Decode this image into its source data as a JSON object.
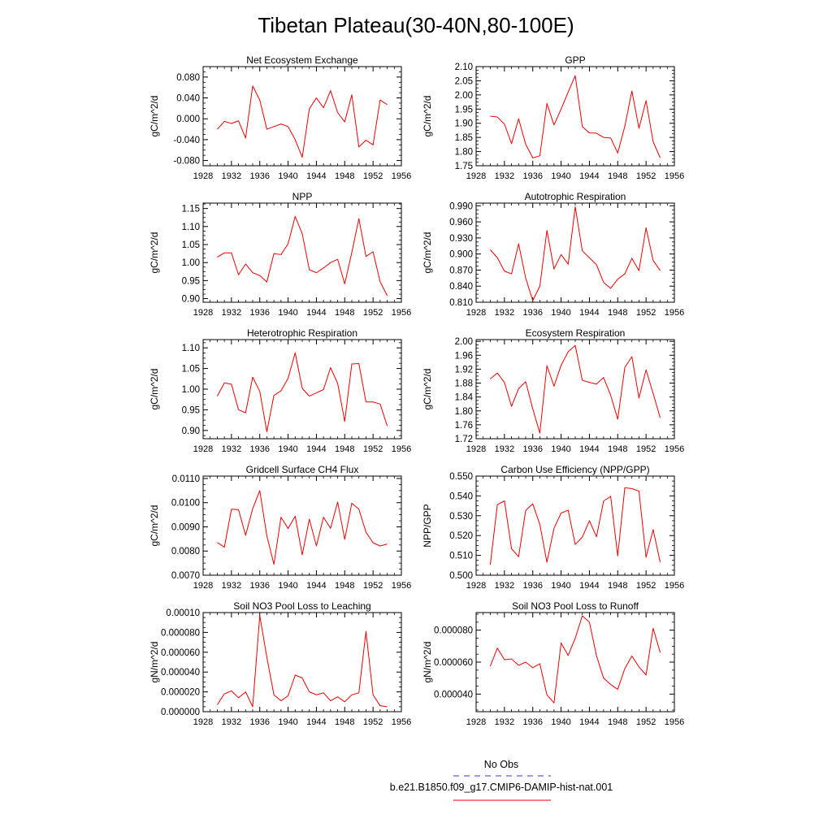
{
  "title": "Tibetan Plateau(30-40N,80-100E)",
  "legend": {
    "obs_label": "No Obs",
    "obs_color": "#3333cc",
    "model_label": "b.e21.B1850.f09_g17.CMIP6-DAMIP-hist-nat.001",
    "model_color": "#ee0000"
  },
  "chart_data": [
    {
      "type": "line",
      "title": "Net Ecosystem Exchange",
      "ylabel": "gC/m^2/d",
      "xlim": [
        1928,
        1956
      ],
      "xticks": [
        "1928",
        "1932",
        "1936",
        "1940",
        "1944",
        "1948",
        "1952",
        "1956"
      ],
      "ylim": [
        -0.09,
        0.1
      ],
      "yticks": [
        "-0.080",
        "-0.040",
        "0.000",
        "0.040",
        "0.080"
      ],
      "series": [
        {
          "x": [
            1930,
            1931,
            1932,
            1933,
            1934,
            1935,
            1936,
            1937,
            1938,
            1939,
            1940,
            1941,
            1942,
            1943,
            1944,
            1945,
            1946,
            1947,
            1948,
            1949,
            1950,
            1951,
            1952,
            1953,
            1954
          ],
          "values": [
            -0.02,
            -0.005,
            -0.009,
            -0.004,
            -0.037,
            0.063,
            0.036,
            -0.02,
            -0.015,
            -0.01,
            -0.015,
            -0.04,
            -0.074,
            0.019,
            0.04,
            0.021,
            0.054,
            0.012,
            -0.006,
            0.046,
            -0.054,
            -0.041,
            -0.05,
            0.036,
            0.027
          ]
        }
      ]
    },
    {
      "type": "line",
      "title": "GPP",
      "ylabel": "gC/m^2/d",
      "xlim": [
        1928,
        1956
      ],
      "xticks": [
        "1928",
        "1932",
        "1936",
        "1940",
        "1944",
        "1948",
        "1952",
        "1956"
      ],
      "ylim": [
        1.75,
        2.1
      ],
      "yticks": [
        "1.75",
        "1.80",
        "1.85",
        "1.90",
        "1.95",
        "2.00",
        "2.05",
        "2.10"
      ],
      "series": [
        {
          "x": [
            1930,
            1931,
            1932,
            1933,
            1934,
            1935,
            1936,
            1937,
            1938,
            1939,
            1940,
            1941,
            1942,
            1943,
            1944,
            1945,
            1946,
            1947,
            1948,
            1949,
            1950,
            1951,
            1952,
            1953,
            1954
          ],
          "values": [
            1.925,
            1.922,
            1.897,
            1.828,
            1.916,
            1.826,
            1.778,
            1.785,
            1.97,
            1.894,
            1.95,
            2.01,
            2.068,
            1.888,
            1.866,
            1.865,
            1.85,
            1.848,
            1.795,
            1.889,
            2.014,
            1.882,
            1.98,
            1.835,
            1.778
          ]
        }
      ]
    },
    {
      "type": "line",
      "title": "NPP",
      "ylabel": "gC/m^2/d",
      "xlim": [
        1928,
        1956
      ],
      "xticks": [
        "1928",
        "1932",
        "1936",
        "1940",
        "1944",
        "1948",
        "1952",
        "1956"
      ],
      "ylim": [
        0.89,
        1.165
      ],
      "yticks": [
        "0.90",
        "0.95",
        "1.00",
        "1.05",
        "1.10",
        "1.15"
      ],
      "series": [
        {
          "x": [
            1930,
            1931,
            1932,
            1933,
            1934,
            1935,
            1936,
            1937,
            1938,
            1939,
            1940,
            1941,
            1942,
            1943,
            1944,
            1945,
            1946,
            1947,
            1948,
            1949,
            1950,
            1951,
            1952,
            1953,
            1954
          ],
          "values": [
            1.015,
            1.027,
            1.027,
            0.966,
            0.996,
            0.972,
            0.964,
            0.946,
            1.025,
            1.022,
            1.052,
            1.128,
            1.08,
            0.98,
            0.972,
            0.985,
            1.0,
            1.009,
            0.941,
            1.028,
            1.122,
            1.017,
            1.03,
            0.947,
            0.908
          ]
        }
      ]
    },
    {
      "type": "line",
      "title": "Autotrophic Respiration",
      "ylabel": "gC/m^2/d",
      "xlim": [
        1928,
        1956
      ],
      "xticks": [
        "1928",
        "1932",
        "1936",
        "1940",
        "1944",
        "1948",
        "1952",
        "1956"
      ],
      "ylim": [
        0.81,
        0.995
      ],
      "yticks": [
        "0.810",
        "0.840",
        "0.870",
        "0.900",
        "0.930",
        "0.960",
        "0.990"
      ],
      "series": [
        {
          "x": [
            1930,
            1931,
            1932,
            1933,
            1934,
            1935,
            1936,
            1937,
            1938,
            1939,
            1940,
            1941,
            1942,
            1943,
            1944,
            1945,
            1946,
            1947,
            1948,
            1949,
            1950,
            1951,
            1952,
            1953,
            1954
          ],
          "values": [
            0.908,
            0.893,
            0.868,
            0.863,
            0.919,
            0.855,
            0.813,
            0.84,
            0.944,
            0.872,
            0.899,
            0.881,
            0.988,
            0.906,
            0.893,
            0.88,
            0.847,
            0.836,
            0.853,
            0.863,
            0.892,
            0.869,
            0.949,
            0.888,
            0.869
          ]
        }
      ]
    },
    {
      "type": "line",
      "title": "Heterotrophic Respiration",
      "ylabel": "gC/m^2/d",
      "xlim": [
        1928,
        1956
      ],
      "xticks": [
        "1928",
        "1932",
        "1936",
        "1940",
        "1944",
        "1948",
        "1952",
        "1956"
      ],
      "ylim": [
        0.88,
        1.12
      ],
      "yticks": [
        "0.90",
        "0.95",
        "1.00",
        "1.05",
        "1.10"
      ],
      "series": [
        {
          "x": [
            1930,
            1931,
            1932,
            1933,
            1934,
            1935,
            1936,
            1937,
            1938,
            1939,
            1940,
            1941,
            1942,
            1943,
            1944,
            1945,
            1946,
            1947,
            1948,
            1949,
            1950,
            1951,
            1952,
            1953,
            1954
          ],
          "values": [
            0.983,
            1.015,
            1.012,
            0.95,
            0.943,
            1.029,
            0.995,
            0.897,
            0.985,
            0.996,
            1.026,
            1.088,
            1.002,
            0.983,
            0.991,
            0.999,
            1.052,
            1.014,
            0.922,
            1.061,
            1.062,
            0.969,
            0.969,
            0.964,
            0.911
          ]
        }
      ]
    },
    {
      "type": "line",
      "title": "Ecosystem Respiration",
      "ylabel": "gC/m^2/d",
      "xlim": [
        1928,
        1956
      ],
      "xticks": [
        "1928",
        "1932",
        "1936",
        "1940",
        "1944",
        "1948",
        "1952",
        "1956"
      ],
      "ylim": [
        1.72,
        2.005
      ],
      "yticks": [
        "1.72",
        "1.76",
        "1.80",
        "1.84",
        "1.88",
        "1.92",
        "1.96",
        "2.00"
      ],
      "series": [
        {
          "x": [
            1930,
            1931,
            1932,
            1933,
            1934,
            1935,
            1936,
            1937,
            1938,
            1939,
            1940,
            1941,
            1942,
            1943,
            1944,
            1945,
            1946,
            1947,
            1948,
            1949,
            1950,
            1951,
            1952,
            1953,
            1954
          ],
          "values": [
            1.892,
            1.909,
            1.882,
            1.813,
            1.864,
            1.884,
            1.806,
            1.736,
            1.93,
            1.871,
            1.931,
            1.97,
            1.988,
            1.888,
            1.882,
            1.877,
            1.896,
            1.845,
            1.776,
            1.925,
            1.956,
            1.837,
            1.918,
            1.85,
            1.78
          ]
        }
      ]
    },
    {
      "type": "line",
      "title": "Gridcell Surface CH4 Flux",
      "ylabel": "gC/m^2/d",
      "xlim": [
        1928,
        1956
      ],
      "xticks": [
        "1928",
        "1932",
        "1936",
        "1940",
        "1944",
        "1948",
        "1952",
        "1956"
      ],
      "ylim": [
        0.007,
        0.0111
      ],
      "yticks": [
        "0.0070",
        "0.0080",
        "0.0090",
        "0.0100",
        "0.0110"
      ],
      "series": [
        {
          "x": [
            1930,
            1931,
            1932,
            1933,
            1934,
            1935,
            1936,
            1937,
            1938,
            1939,
            1940,
            1941,
            1942,
            1943,
            1944,
            1945,
            1946,
            1947,
            1948,
            1949,
            1950,
            1951,
            1952,
            1953,
            1954
          ],
          "values": [
            0.00835,
            0.00816,
            0.00973,
            0.00971,
            0.00865,
            0.00975,
            0.0105,
            0.00863,
            0.00745,
            0.0094,
            0.00893,
            0.00944,
            0.00784,
            0.00932,
            0.00821,
            0.0094,
            0.00894,
            0.01003,
            0.00848,
            0.00998,
            0.00973,
            0.00878,
            0.00834,
            0.00821,
            0.00829
          ]
        }
      ]
    },
    {
      "type": "line",
      "title": "Carbon Use Efficiency (NPP/GPP)",
      "ylabel": "NPP/GPP",
      "xlim": [
        1928,
        1956
      ],
      "xticks": [
        "1928",
        "1932",
        "1936",
        "1940",
        "1944",
        "1948",
        "1952",
        "1956"
      ],
      "ylim": [
        0.5,
        0.55
      ],
      "yticks": [
        "0.500",
        "0.510",
        "0.520",
        "0.530",
        "0.540",
        "0.550"
      ],
      "series": [
        {
          "x": [
            1930,
            1931,
            1932,
            1933,
            1934,
            1935,
            1936,
            1937,
            1938,
            1939,
            1940,
            1941,
            1942,
            1943,
            1944,
            1945,
            1946,
            1947,
            1948,
            1949,
            1950,
            1951,
            1952,
            1953,
            1954
          ],
          "values": [
            0.5053,
            0.5356,
            0.5375,
            0.5134,
            0.5093,
            0.5327,
            0.536,
            0.5256,
            0.5065,
            0.5237,
            0.5313,
            0.5328,
            0.5155,
            0.5192,
            0.5275,
            0.5194,
            0.5374,
            0.5398,
            0.5097,
            0.5441,
            0.5437,
            0.5424,
            0.509,
            0.523,
            0.5066
          ]
        }
      ]
    },
    {
      "type": "line",
      "title": "Soil NO3 Pool Loss to Leaching",
      "ylabel": "gN/m^2/d",
      "xlim": [
        1928,
        1956
      ],
      "xticks": [
        "1928",
        "1932",
        "1936",
        "1940",
        "1944",
        "1948",
        "1952",
        "1956"
      ],
      "ylim": [
        0,
        0.0001
      ],
      "yticks": [
        "0.000000",
        "0.000020",
        "0.000040",
        "0.000060",
        "0.000080",
        "0.00010"
      ],
      "series": [
        {
          "x": [
            1930,
            1931,
            1932,
            1933,
            1934,
            1935,
            1936,
            1937,
            1938,
            1939,
            1940,
            1941,
            1942,
            1943,
            1944,
            1945,
            1946,
            1947,
            1948,
            1949,
            1950,
            1951,
            1952,
            1953,
            1954
          ],
          "values": [
            7e-06,
            1.8e-05,
            2.1e-05,
            1.4e-05,
            2e-05,
            5e-06,
            9.7e-05,
            5.5e-05,
            1.7e-05,
            1.1e-05,
            1.6e-05,
            3.7e-05,
            3.4e-05,
            2e-05,
            1.7e-05,
            1.9e-05,
            1.1e-05,
            1.5e-05,
            1e-05,
            1.7e-05,
            1.9e-05,
            8.1e-05,
            1.7e-05,
            6e-06,
            5e-06
          ]
        }
      ]
    },
    {
      "type": "line",
      "title": "Soil NO3 Pool Loss to Runoff",
      "ylabel": "gN/m^2/d",
      "xlim": [
        1928,
        1956
      ],
      "xticks": [
        "1928",
        "1932",
        "1936",
        "1940",
        "1944",
        "1948",
        "1952",
        "1956"
      ],
      "ylim": [
        2.9e-05,
        9.1e-05
      ],
      "yticks": [
        "0.000040",
        "0.000060",
        "0.000080"
      ],
      "series": [
        {
          "x": [
            1930,
            1931,
            1932,
            1933,
            1934,
            1935,
            1936,
            1937,
            1938,
            1939,
            1940,
            1941,
            1942,
            1943,
            1944,
            1945,
            1946,
            1947,
            1948,
            1949,
            1950,
            1951,
            1952,
            1953,
            1954
          ],
          "values": [
            5.75e-05,
            6.88e-05,
            6.15e-05,
            6.2e-05,
            5.8e-05,
            6e-05,
            5.65e-05,
            5.9e-05,
            3.95e-05,
            3.45e-05,
            7.2e-05,
            6.42e-05,
            7.5e-05,
            8.9e-05,
            8.5e-05,
            6.4e-05,
            5e-05,
            4.6e-05,
            4.3e-05,
            5.6e-05,
            6.38e-05,
            5.7e-05,
            5.2e-05,
            8.12e-05,
            6.6e-05
          ]
        }
      ]
    }
  ]
}
